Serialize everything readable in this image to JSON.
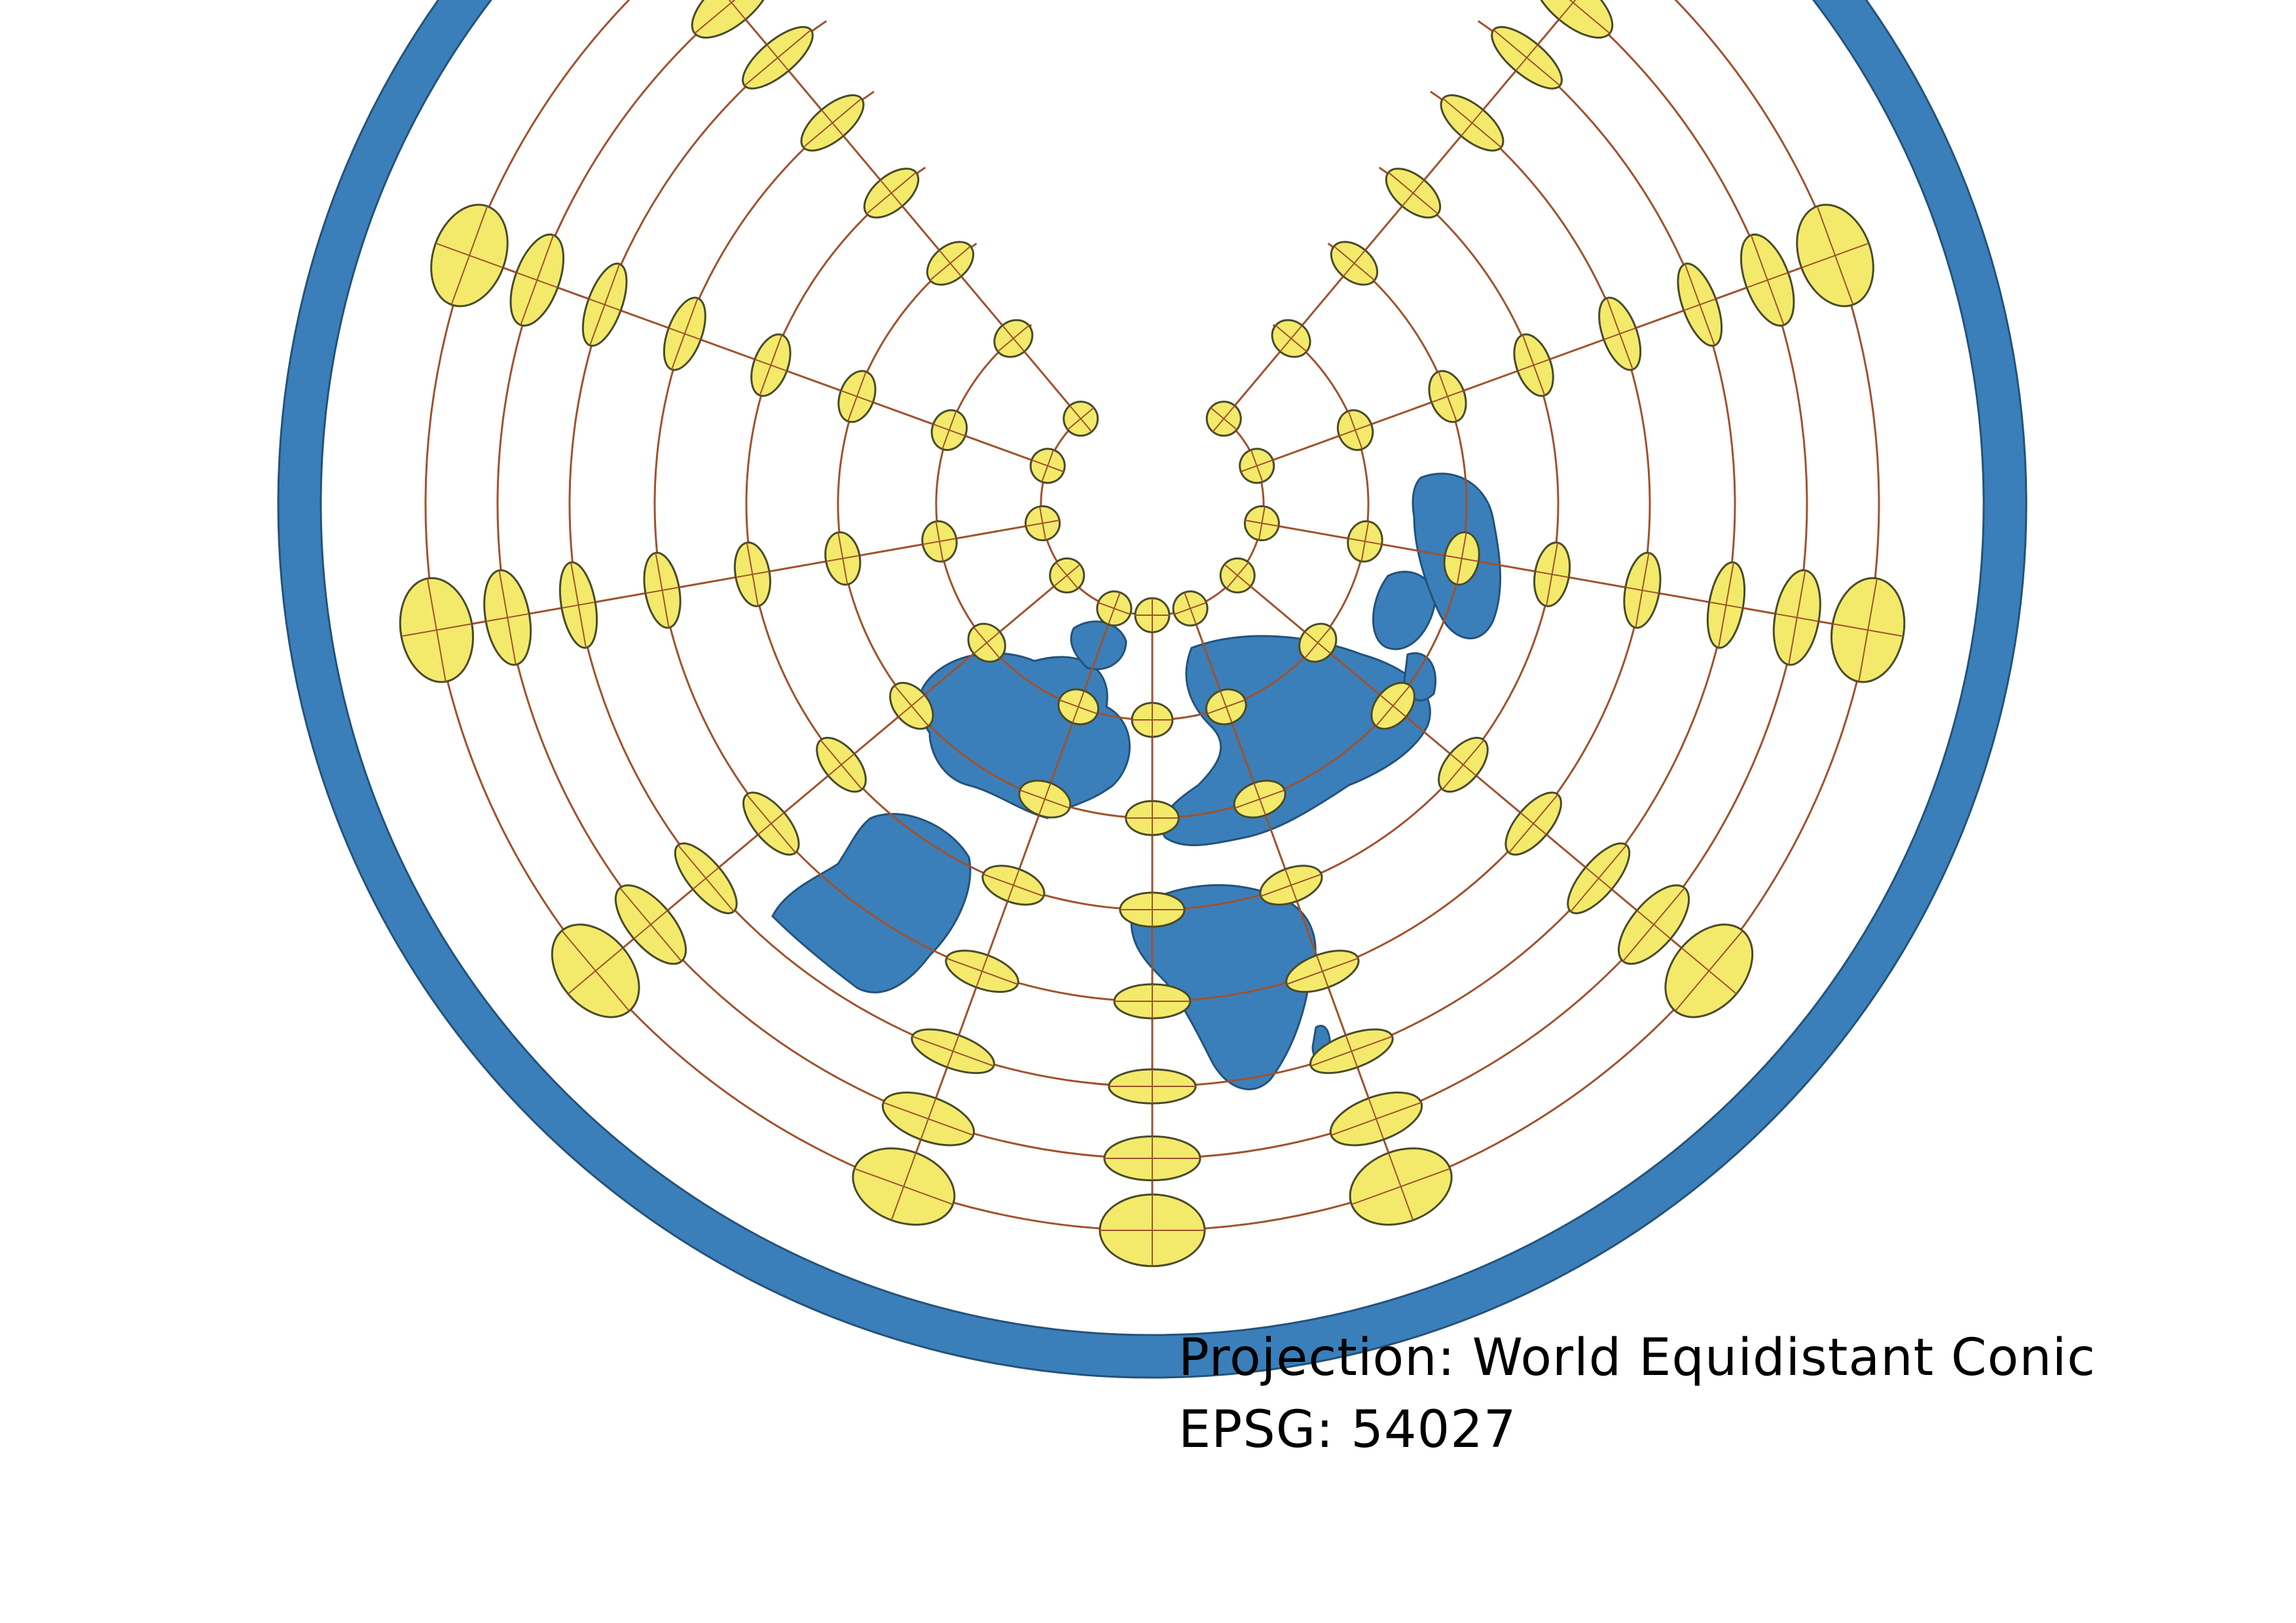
{
  "caption": {
    "projection_line": "Projection: World Equidistant Conic",
    "epsg_line": "EPSG: 54027"
  },
  "map": {
    "land_color": "#3a7fba",
    "land_stroke": "#24527a",
    "ocean_color": "#ffffff",
    "graticule_color": "#a0522d",
    "ellipse_fill": "#f3ea6b",
    "ellipse_stroke": "#4a4a2a",
    "content": "Tissot indicatrix ellipses over a world equidistant conic projection"
  }
}
